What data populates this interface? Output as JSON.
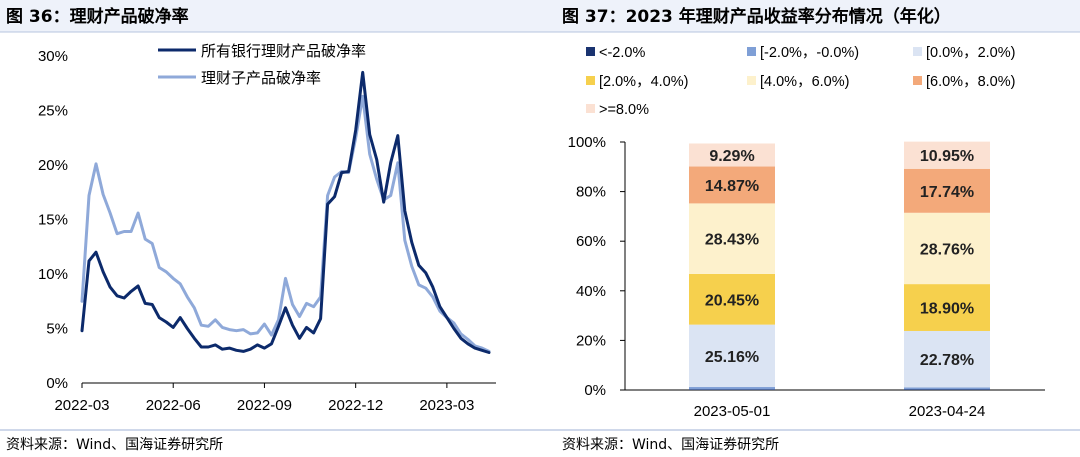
{
  "colors": {
    "header_band": "#eef2fa",
    "series_all": "#0c2a6b",
    "series_sub": "#8fa9d9",
    "grid": "#d9d9d9"
  },
  "left": {
    "title": "图 36：理财产品破净率",
    "source": "资料来源：Wind、国海证券研究所",
    "chart_data": {
      "type": "line",
      "y_ticks": [
        "0%",
        "5%",
        "10%",
        "15%",
        "20%",
        "25%",
        "30%"
      ],
      "ylim": [
        0,
        30
      ],
      "x_ticks": [
        "2022-03",
        "2022-06",
        "2022-09",
        "2022-12",
        "2023-03"
      ],
      "x_tick_pos": [
        0,
        13,
        26,
        39,
        52
      ],
      "xlim": [
        0,
        59
      ],
      "series": [
        {
          "name": "所有银行理财产品破净率",
          "color": "#0c2a6b",
          "values": [
            4.8,
            11.2,
            12.0,
            10.2,
            8.8,
            8.0,
            7.8,
            8.4,
            8.9,
            7.3,
            7.2,
            6.0,
            5.6,
            5.1,
            6.0,
            5.0,
            4.1,
            3.3,
            3.3,
            3.5,
            3.1,
            3.2,
            3.0,
            2.9,
            3.1,
            3.5,
            3.2,
            3.6,
            5.2,
            6.9,
            5.3,
            4.1,
            5.1,
            4.6,
            5.9,
            16.4,
            17.1,
            19.3,
            19.4,
            23.2,
            28.5,
            22.8,
            20.5,
            16.6,
            20.2,
            22.7,
            15.8,
            12.9,
            10.8,
            10.1,
            8.8,
            7.0,
            6.0,
            5.0,
            4.1,
            3.6,
            3.2,
            3.0,
            2.8
          ]
        },
        {
          "name": "理财子产品破净率",
          "color": "#8fa9d9",
          "values": [
            7.5,
            17.2,
            20.1,
            17.3,
            15.6,
            13.7,
            13.9,
            13.9,
            15.6,
            13.2,
            12.8,
            10.6,
            10.2,
            9.6,
            9.1,
            7.9,
            6.9,
            5.3,
            5.2,
            5.8,
            5.1,
            4.9,
            4.8,
            4.9,
            4.5,
            4.6,
            5.4,
            4.4,
            5.8,
            9.6,
            7.2,
            6.1,
            7.3,
            7.0,
            7.9,
            17.2,
            18.9,
            19.4,
            19.3,
            22.5,
            26.3,
            21.0,
            18.7,
            16.8,
            17.2,
            20.2,
            13.1,
            10.7,
            9.0,
            8.7,
            7.9,
            6.6,
            6.0,
            5.5,
            4.5,
            4.0,
            3.4,
            3.2,
            2.9
          ]
        }
      ]
    }
  },
  "right": {
    "title": "图 37：2023 年理财产品收益率分布情况（年化）",
    "source": "资料来源：Wind、国海证券研究所",
    "chart_data": {
      "type": "bar",
      "stacked": true,
      "y_ticks": [
        "0%",
        "20%",
        "40%",
        "60%",
        "80%",
        "100%"
      ],
      "ylim": [
        0,
        100
      ],
      "categories": [
        "2023-05-01",
        "2023-04-24"
      ],
      "series": [
        {
          "name": "<-2.0%",
          "color": "#1a3370",
          "values": [
            0.3,
            0.33
          ],
          "labels": [
            "",
            ""
          ]
        },
        {
          "name": "[-2.0%，-0.0%)",
          "color": "#7f9fd6",
          "values": [
            0.9,
            0.69
          ],
          "labels": [
            "",
            ""
          ]
        },
        {
          "name": "[0.0%，2.0%)",
          "color": "#dbe4f3",
          "values": [
            25.16,
            22.78
          ],
          "labels": [
            "25.16%",
            "22.78%"
          ]
        },
        {
          "name": "[2.0%，4.0%)",
          "color": "#f6d04d",
          "values": [
            20.45,
            18.9
          ],
          "labels": [
            "20.45%",
            "18.90%"
          ]
        },
        {
          "name": "[4.0%，6.0%)",
          "color": "#fdf1cc",
          "values": [
            28.43,
            28.76
          ],
          "labels": [
            "28.43%",
            "28.76%"
          ]
        },
        {
          "name": "[6.0%，8.0%)",
          "color": "#f3a97a",
          "values": [
            14.87,
            17.74
          ],
          "labels": [
            "14.87%",
            "17.74%"
          ]
        },
        {
          "name": ">=8.0%",
          "color": "#fbe1d3",
          "values": [
            9.29,
            10.95
          ],
          "labels": [
            "9.29%",
            "10.95%"
          ]
        }
      ]
    }
  }
}
